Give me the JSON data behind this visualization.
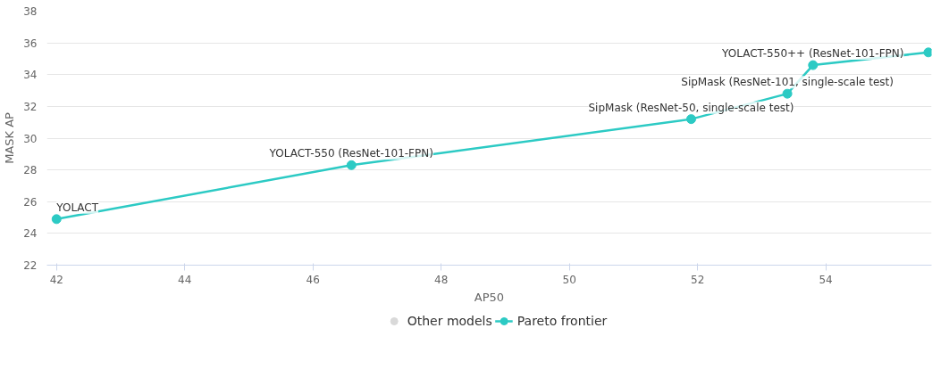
{
  "chart_data": {
    "type": "line",
    "xlabel": "AP50",
    "ylabel": "MASK AP",
    "x": [
      42.0,
      46.6,
      51.9,
      53.4,
      53.8,
      55.6
    ],
    "series": [
      {
        "name": "Other models",
        "type": "scatter",
        "color": "#d9d9d9",
        "values": [
          null,
          null,
          null,
          null,
          null,
          null
        ]
      },
      {
        "name": "Pareto frontier",
        "color": "#2ccac4",
        "values": [
          24.9,
          28.3,
          31.2,
          32.8,
          34.6,
          35.4
        ]
      }
    ],
    "annotations": [
      {
        "text": "YOLACT",
        "x": 42.0,
        "y": 24.9
      },
      {
        "text": "YOLACT-550 (ResNet-101-FPN)",
        "x": 46.6,
        "y": 28.3
      },
      {
        "text": "SipMask (ResNet-50, single-scale test)",
        "x": 51.9,
        "y": 31.2
      },
      {
        "text": "SipMask (ResNet-101, single-scale test)",
        "x": 53.4,
        "y": 32.8
      },
      {
        "text": "YOLACT-550++ (ResNet-101-FPN)",
        "x": 53.8,
        "y": 34.6
      }
    ],
    "xlim": [
      41.85,
      55.65
    ],
    "ylim": [
      22,
      38
    ],
    "xticks": [
      42,
      44,
      46,
      48,
      50,
      52,
      54
    ],
    "yticks": [
      22,
      24,
      26,
      28,
      30,
      32,
      34,
      36,
      38
    ],
    "grid": "y",
    "legend": "bottom",
    "marker": "circle"
  }
}
